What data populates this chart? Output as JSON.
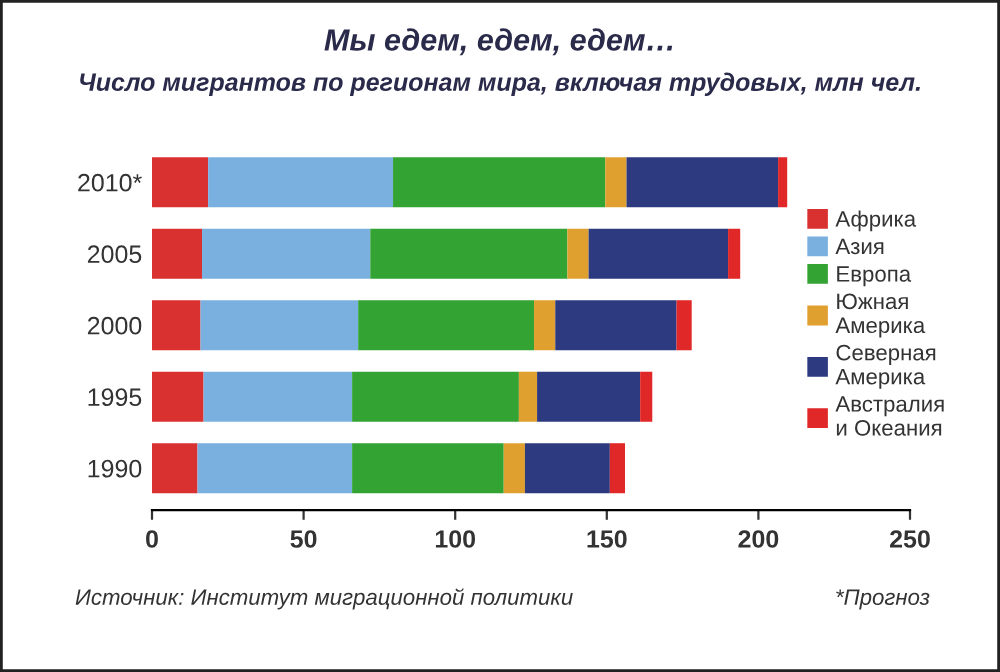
{
  "chart_data": {
    "type": "bar",
    "orientation": "horizontal",
    "stacked": true,
    "title": "Мы едем, едем, едем…",
    "subtitle": "Число мигрантов по регионам мира, включая трудовых, млн чел.",
    "categories": [
      "2010*",
      "2005",
      "2000",
      "1995",
      "1990"
    ],
    "series": [
      {
        "name": "Африка",
        "color": "#d93030",
        "values": [
          18.5,
          16.5,
          16,
          17,
          15
        ]
      },
      {
        "name": "Азия",
        "color": "#7ab0e0",
        "values": [
          61,
          55.5,
          52,
          49,
          51
        ]
      },
      {
        "name": "Европа",
        "color": "#33a333",
        "values": [
          70,
          65,
          58,
          55,
          50
        ]
      },
      {
        "name": "Южная\nАмерика",
        "color": "#e0a030",
        "values": [
          7,
          7,
          7,
          6,
          7
        ]
      },
      {
        "name": "Северная\nАмерика",
        "color": "#2e3a80",
        "values": [
          50,
          46,
          40,
          34,
          28
        ]
      },
      {
        "name": "Австралия\nи Океания",
        "color": "#e02828",
        "values": [
          3,
          4,
          5,
          4,
          5
        ]
      }
    ],
    "xlim": [
      0,
      250
    ],
    "xticks": [
      0,
      50,
      100,
      150,
      200,
      250
    ],
    "legend": "right",
    "grid": false,
    "annotations": [
      "Источник: Институт миграционной политики",
      "*Прогноз"
    ]
  }
}
